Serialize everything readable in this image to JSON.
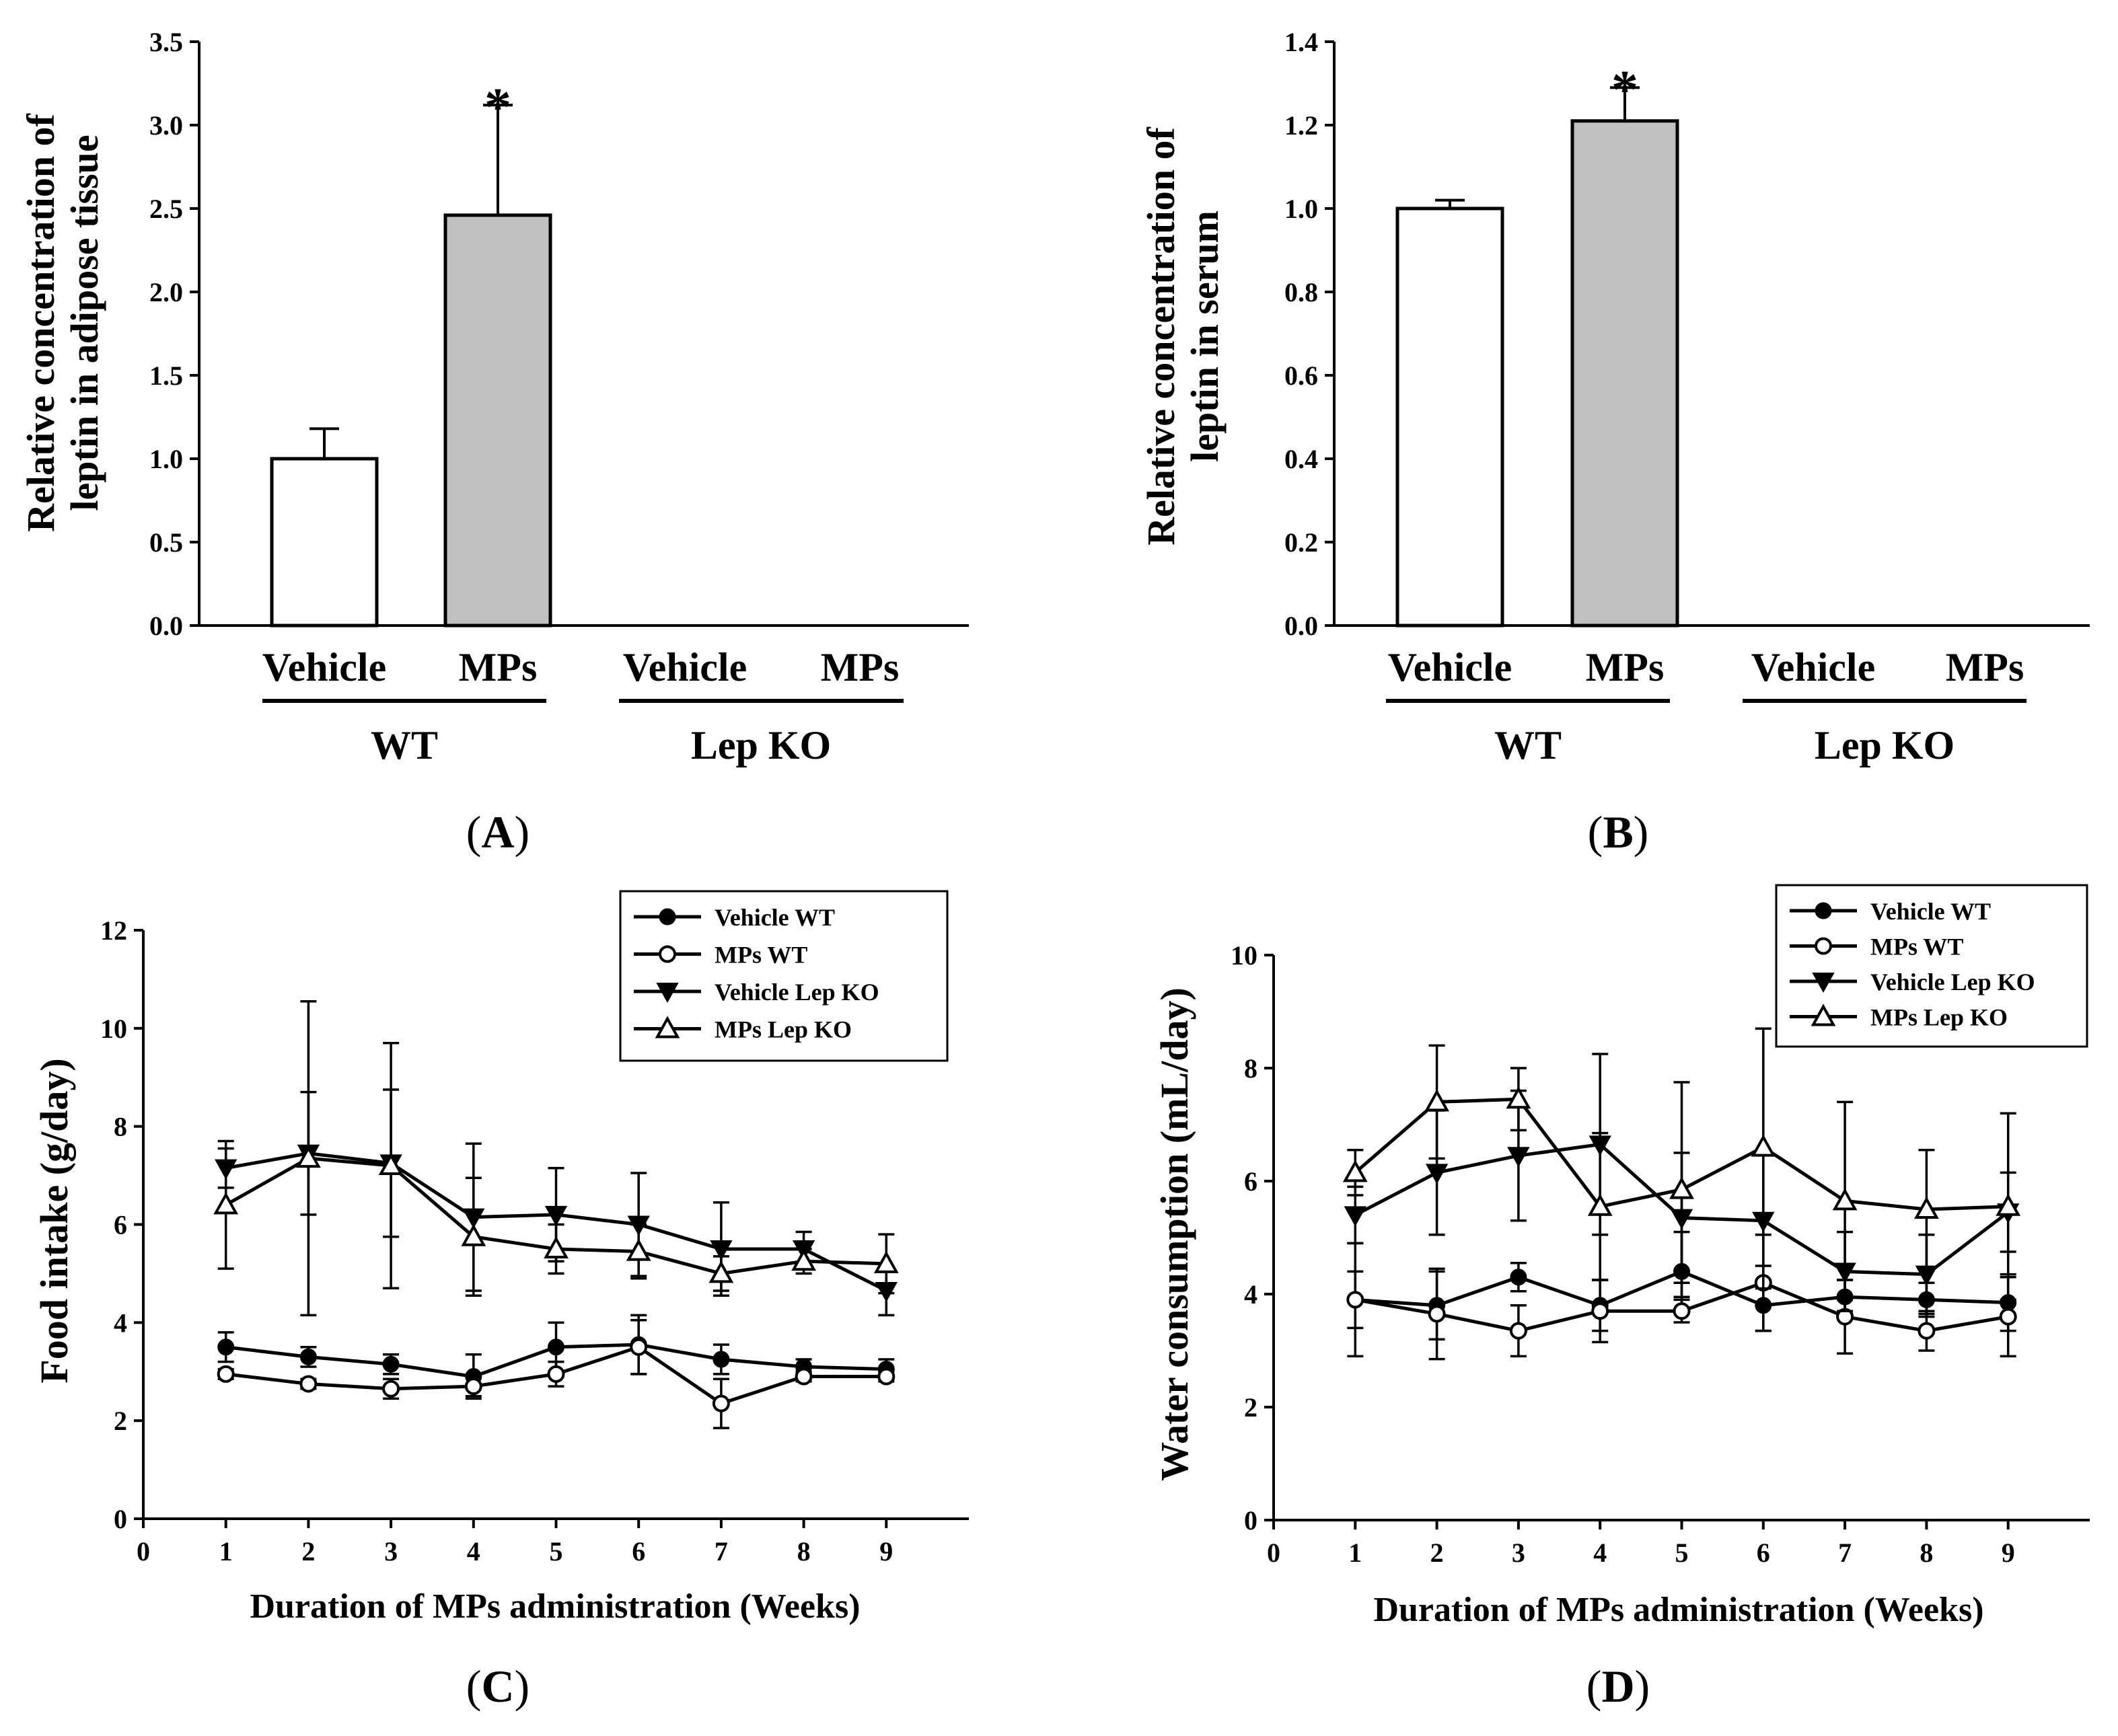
{
  "chart_data": [
    {
      "panel": "A",
      "type": "bar",
      "ylabel": [
        "Relative concentration of",
        "leptin in adipose tissue"
      ],
      "ylim": [
        0,
        3.5
      ],
      "yticks": [
        "0.0",
        "0.5",
        "1.0",
        "1.5",
        "2.0",
        "2.5",
        "3.0",
        "3.5"
      ],
      "categories": [
        "Vehicle",
        "MPs",
        "Vehicle",
        "MPs"
      ],
      "groups": [
        "WT",
        "Lep KO"
      ],
      "values": [
        1.0,
        2.46,
        null,
        null
      ],
      "errors": [
        0.18,
        0.66,
        null,
        null
      ],
      "significance": [
        "",
        "*",
        "",
        ""
      ],
      "colors": [
        "#ffffff",
        "#c0c0c0",
        "#ffffff",
        "#c0c0c0"
      ]
    },
    {
      "panel": "B",
      "type": "bar",
      "ylabel": [
        "Relative concentration of",
        "leptin in serum"
      ],
      "ylim": [
        0,
        1.4
      ],
      "yticks": [
        "0.0",
        "0.2",
        "0.4",
        "0.6",
        "0.8",
        "1.0",
        "1.2",
        "1.4"
      ],
      "categories": [
        "Vehicle",
        "MPs",
        "Vehicle",
        "MPs"
      ],
      "groups": [
        "WT",
        "Lep KO"
      ],
      "values": [
        1.0,
        1.21,
        null,
        null
      ],
      "errors": [
        0.02,
        0.08,
        null,
        null
      ],
      "significance": [
        "",
        "*",
        "",
        ""
      ],
      "colors": [
        "#ffffff",
        "#c0c0c0",
        "#ffffff",
        "#c0c0c0"
      ]
    },
    {
      "panel": "C",
      "type": "line",
      "ylabel": "Food intake (g/day)",
      "xlabel": "Duration of MPs administration (Weeks)",
      "xlim": [
        0,
        10
      ],
      "ylim": [
        0,
        12
      ],
      "xticks": [
        "0",
        "1",
        "2",
        "3",
        "4",
        "5",
        "6",
        "7",
        "8",
        "9"
      ],
      "yticks": [
        "0",
        "2",
        "4",
        "6",
        "8",
        "10",
        "12"
      ],
      "x": [
        1,
        2,
        3,
        4,
        5,
        6,
        7,
        8,
        9
      ],
      "series": [
        {
          "name": "Vehicle WT",
          "marker": "circle-filled",
          "values": [
            3.5,
            3.3,
            3.15,
            2.9,
            3.5,
            3.55,
            3.25,
            3.1,
            3.05
          ],
          "errors": [
            0.3,
            0.2,
            0.2,
            0.45,
            0.5,
            0.6,
            0.3,
            0.15,
            0.2
          ]
        },
        {
          "name": "MPs WT",
          "marker": "circle-open",
          "values": [
            2.95,
            2.75,
            2.65,
            2.7,
            2.95,
            3.5,
            2.35,
            2.9,
            2.9
          ],
          "errors": [
            0.1,
            0.1,
            0.2,
            0.2,
            0.25,
            0.55,
            0.5,
            0.1,
            0.1
          ]
        },
        {
          "name": "Vehicle Lep KO",
          "marker": "triangle-down-filled",
          "values": [
            7.15,
            7.45,
            7.25,
            6.15,
            6.2,
            6.0,
            5.5,
            5.5,
            4.65
          ],
          "errors": [
            0.4,
            1.25,
            1.5,
            1.5,
            0.95,
            1.05,
            0.95,
            0.35,
            0.5
          ]
        },
        {
          "name": "MPs Lep KO",
          "marker": "triangle-up-open",
          "values": [
            6.4,
            7.35,
            7.2,
            5.75,
            5.5,
            5.45,
            5.0,
            5.25,
            5.2
          ],
          "errors": [
            1.3,
            3.2,
            2.5,
            1.2,
            0.5,
            0.55,
            0.35,
            0.25,
            0.6
          ]
        }
      ]
    },
    {
      "panel": "D",
      "type": "line",
      "ylabel": "Water consumption (mL/day)",
      "xlabel": "Duration of MPs administration (Weeks)",
      "xlim": [
        0,
        10
      ],
      "ylim": [
        0,
        10
      ],
      "xticks": [
        "0",
        "1",
        "2",
        "3",
        "4",
        "5",
        "6",
        "7",
        "8",
        "9"
      ],
      "yticks": [
        "0",
        "2",
        "4",
        "6",
        "8",
        "10"
      ],
      "x": [
        1,
        2,
        3,
        4,
        5,
        6,
        7,
        8,
        9
      ],
      "series": [
        {
          "name": "Vehicle WT",
          "marker": "circle-filled",
          "values": [
            3.9,
            3.8,
            4.3,
            3.8,
            4.4,
            3.8,
            3.95,
            3.9,
            3.85
          ],
          "errors": [
            0.5,
            0.6,
            0.25,
            0.45,
            0.7,
            0.45,
            0.3,
            0.3,
            0.5
          ]
        },
        {
          "name": "MPs WT",
          "marker": "circle-open",
          "values": [
            3.9,
            3.65,
            3.35,
            3.7,
            3.7,
            4.2,
            3.6,
            3.35,
            3.6
          ],
          "errors": [
            1.0,
            0.8,
            0.45,
            0.55,
            0.2,
            0.85,
            0.65,
            0.35,
            0.7
          ]
        },
        {
          "name": "Vehicle Lep KO",
          "marker": "triangle-down-filled",
          "values": [
            5.4,
            6.15,
            6.45,
            6.65,
            5.35,
            5.3,
            4.4,
            4.35,
            5.45
          ],
          "errors": [
            0.5,
            1.1,
            1.15,
            1.6,
            1.15,
            1.2,
            0.7,
            0.7,
            0.7
          ]
        },
        {
          "name": "MPs Lep KO",
          "marker": "triangle-up-open",
          "values": [
            6.15,
            7.4,
            7.45,
            5.55,
            5.85,
            6.6,
            5.65,
            5.5,
            5.55
          ],
          "errors": [
            0.4,
            1.0,
            0.55,
            1.3,
            1.9,
            2.1,
            1.75,
            1.05,
            1.65
          ]
        }
      ]
    }
  ],
  "panel_labels": [
    "A",
    "B",
    "C",
    "D"
  ]
}
